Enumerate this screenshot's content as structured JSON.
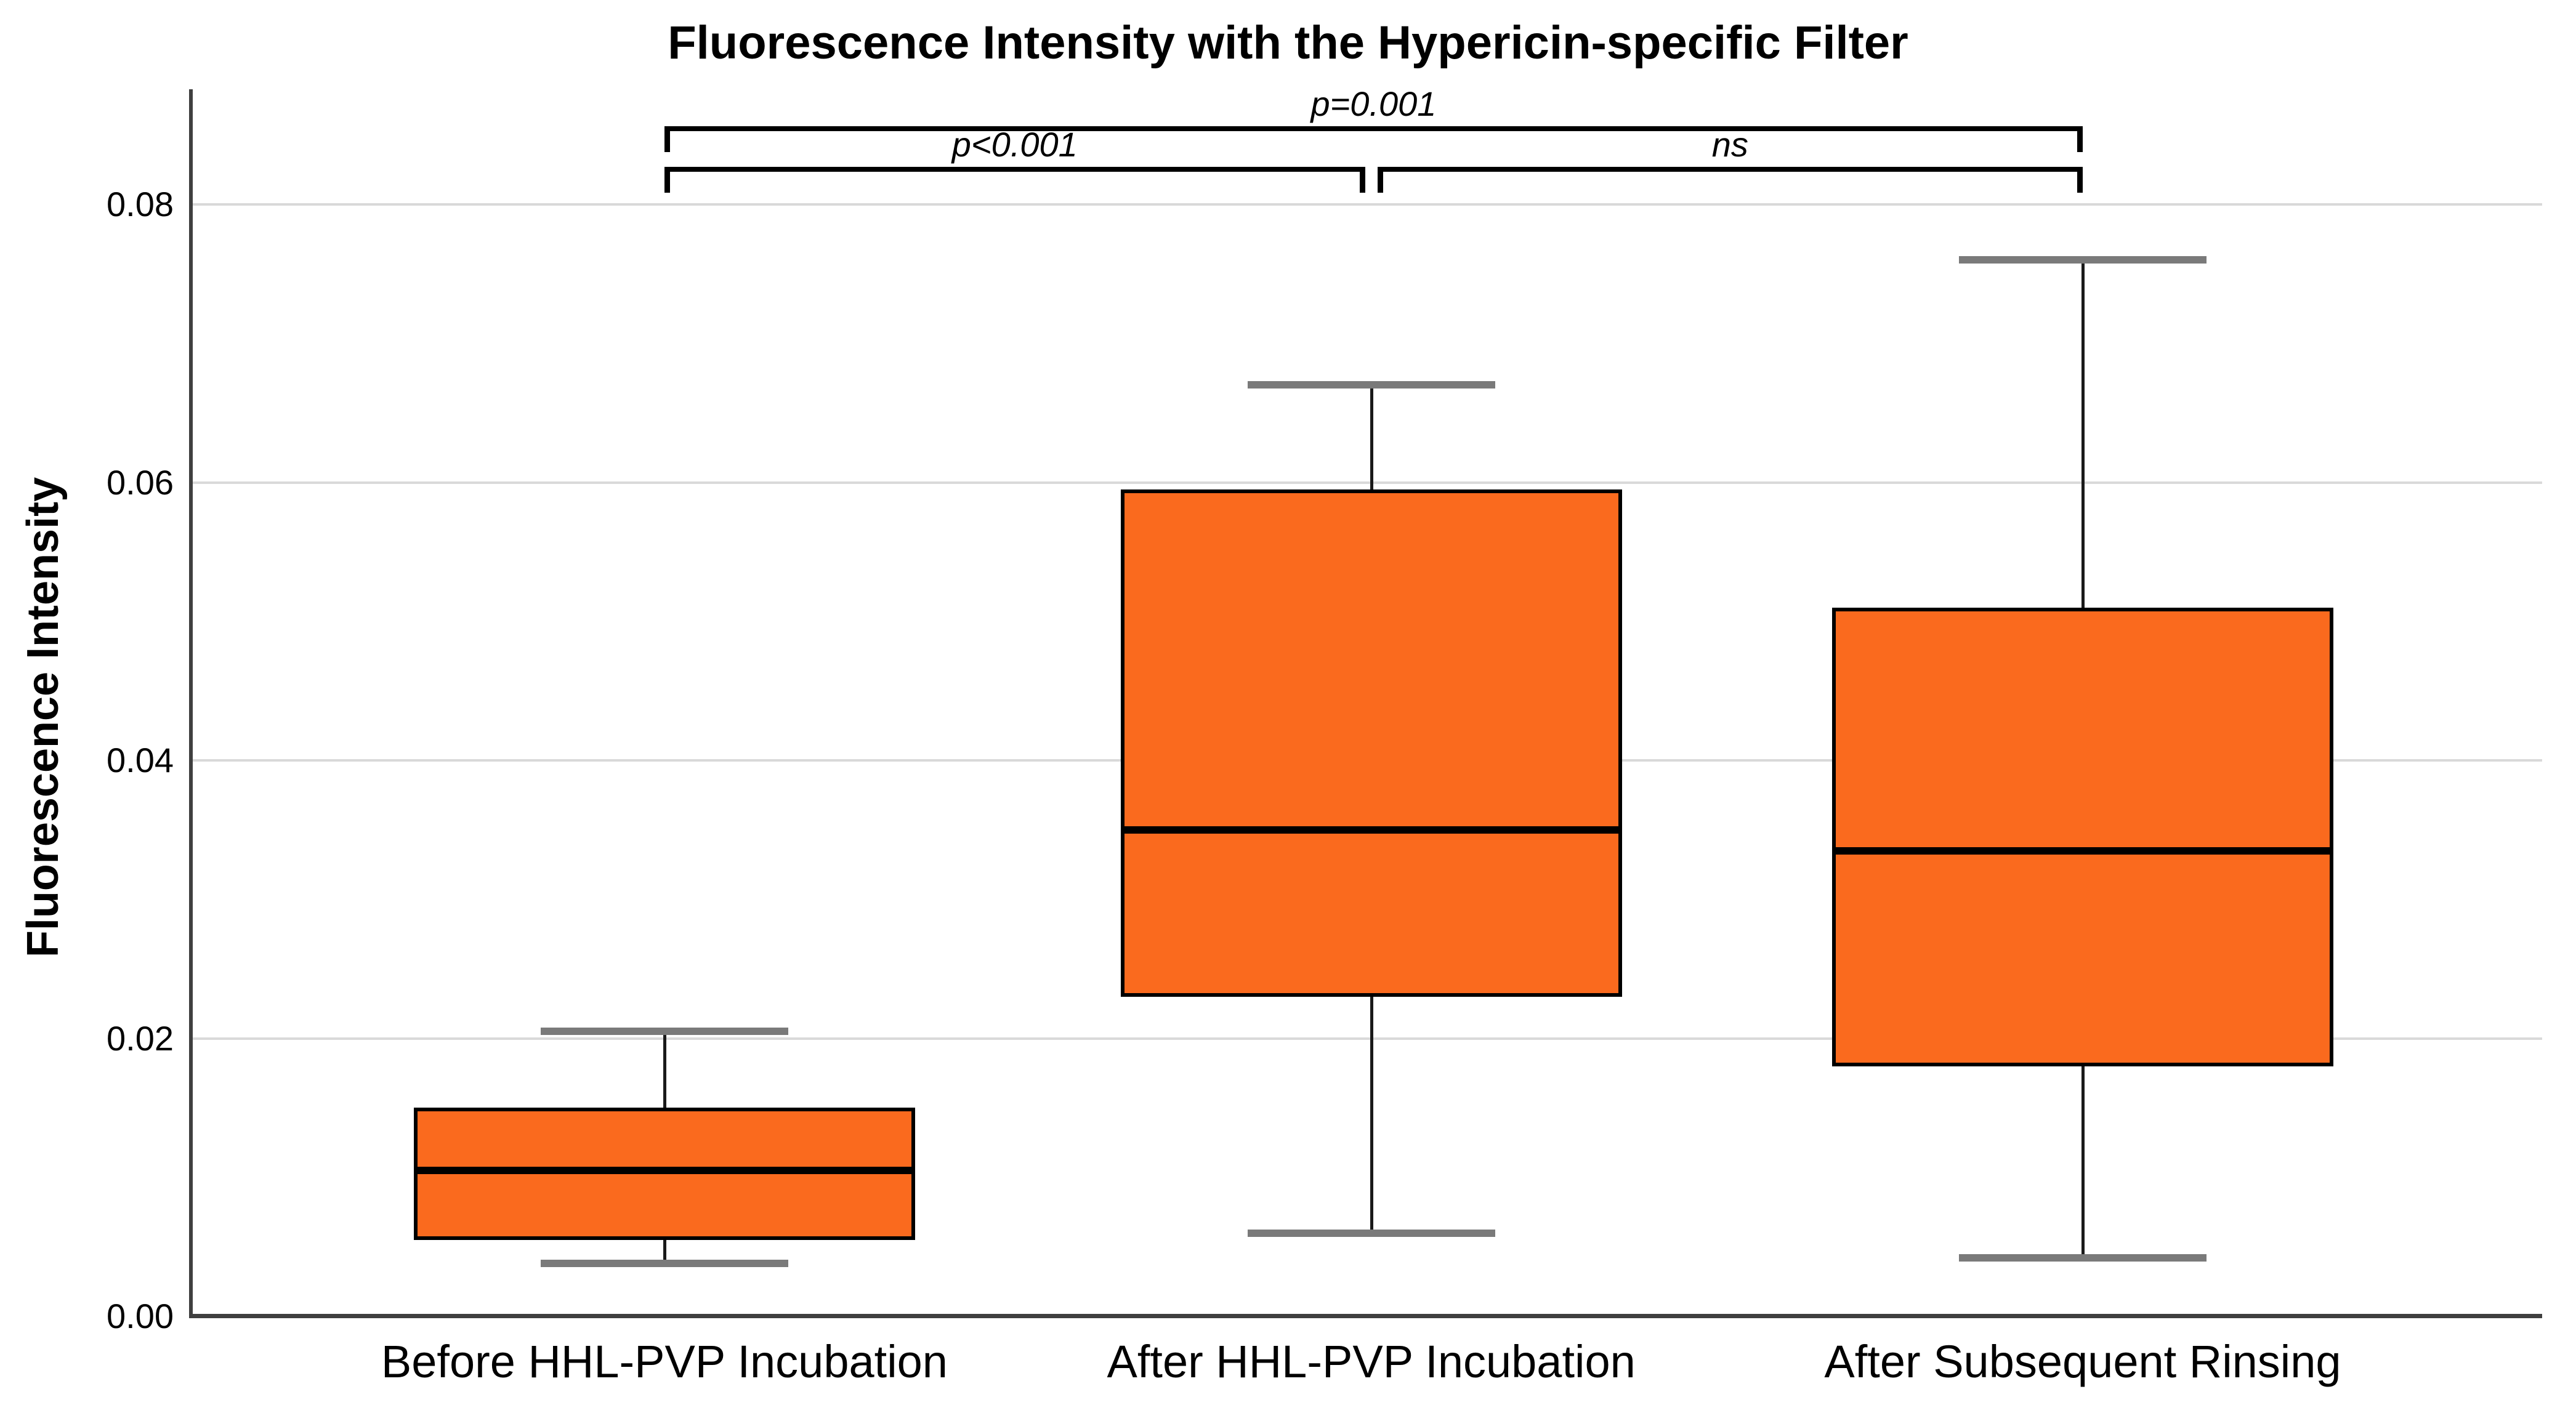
{
  "page": {
    "background": "#ffffff"
  },
  "colors": {
    "box_fill": "#FA6A1E",
    "box_border": "#000000",
    "median_line": "#000000",
    "whisker_line": "#1a1a1a",
    "whisker_cap": "#7a7a7a",
    "gridline": "#d9d9d9",
    "axis_line": "#3f3f3f",
    "bracket": "#000000",
    "text": "#000000"
  },
  "chart_data": {
    "type": "box",
    "title": "Fluorescence Intensity with the Hypericin-specific Filter",
    "ylabel": "Fluorescence Intensity",
    "xlabel": "",
    "ylim": [
      0,
      0.088
    ],
    "grid": true,
    "legend": "none",
    "yticks": [
      {
        "value": 0.0,
        "label": "0.00"
      },
      {
        "value": 0.02,
        "label": "0.02"
      },
      {
        "value": 0.04,
        "label": "0.04"
      },
      {
        "value": 0.06,
        "label": "0.06"
      },
      {
        "value": 0.08,
        "label": "0.08"
      }
    ],
    "categories": [
      "Before HHL-PVP Incubation",
      "After HHL-PVP Incubation",
      "After Subsequent Rinsing"
    ],
    "series": [
      {
        "category": "Before HHL-PVP Incubation",
        "whisker_low": 0.0038,
        "q1": 0.0055,
        "median": 0.0105,
        "q3": 0.015,
        "whisker_high": 0.0205
      },
      {
        "category": "After HHL-PVP Incubation",
        "whisker_low": 0.006,
        "q1": 0.023,
        "median": 0.035,
        "q3": 0.0595,
        "whisker_high": 0.067
      },
      {
        "category": "After Subsequent Rinsing",
        "whisker_low": 0.0042,
        "q1": 0.018,
        "median": 0.0335,
        "q3": 0.051,
        "whisker_high": 0.076
      }
    ],
    "annotations": [
      {
        "label": "p=0.001",
        "from": 0,
        "to": 2,
        "row": "top"
      },
      {
        "label": "p<0.001",
        "from": 0,
        "to": 1,
        "row": "bottom"
      },
      {
        "label": "ns",
        "from": 1,
        "to": 2,
        "row": "bottom"
      }
    ]
  }
}
